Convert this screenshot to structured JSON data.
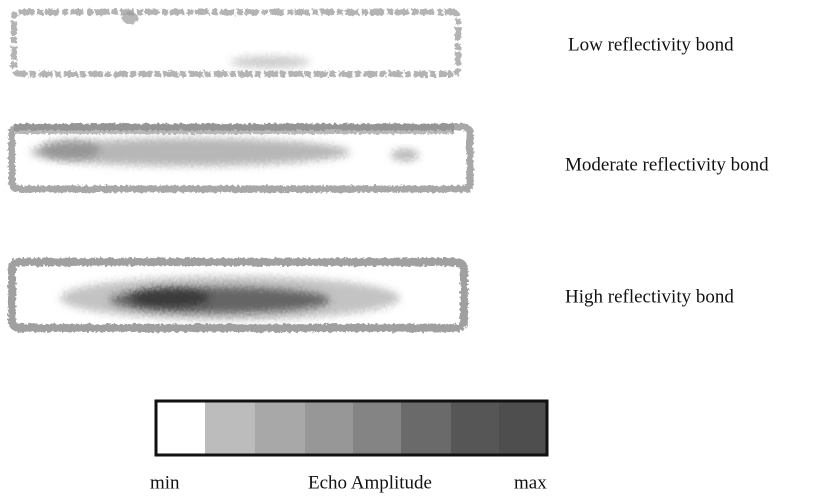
{
  "scans": [
    {
      "label": "Low reflectivity bond"
    },
    {
      "label": "Moderate reflectivity bond"
    },
    {
      "label": "High reflectivity bond"
    }
  ],
  "legend": {
    "min": "min",
    "title": "Echo Amplitude",
    "max": "max"
  }
}
